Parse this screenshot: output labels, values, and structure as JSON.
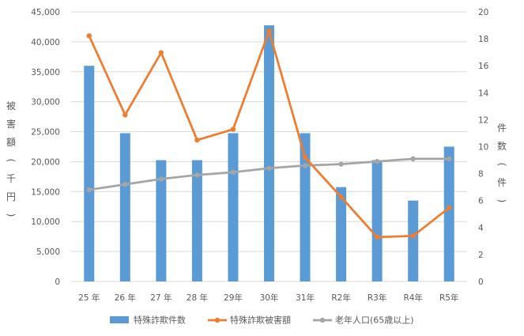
{
  "chart_data": {
    "type": "bar",
    "categories": [
      "25 年",
      "26 年",
      "27 年",
      "28 年",
      "29年",
      "30年",
      "31年",
      "R2年",
      "R3年",
      "R4年",
      "R5年"
    ],
    "left_axis": {
      "label": "被害額（千円）",
      "ylim": [
        0,
        45000
      ],
      "ticks": [
        "0",
        "5,000",
        "10,000",
        "15,000",
        "20,000",
        "25,000",
        "30,000",
        "35,000",
        "40,000",
        "45,000"
      ]
    },
    "right_axis": {
      "label": "件数（件）",
      "ylim": [
        0,
        20
      ],
      "ticks": [
        "0",
        "2",
        "4",
        "6",
        "8",
        "10",
        "12",
        "14",
        "16",
        "18",
        "20"
      ]
    },
    "series": [
      {
        "name": "特殊詐欺件数",
        "type": "bar",
        "axis": "right",
        "color": "#5b9bd5",
        "values": [
          16,
          11,
          9,
          9,
          11,
          19,
          11,
          7,
          9,
          6,
          10
        ]
      },
      {
        "name": "特殊詐欺被害額",
        "type": "line",
        "axis": "left",
        "color": "#ed7d31",
        "values": [
          41000,
          27800,
          38200,
          23600,
          25400,
          41800,
          20700,
          14100,
          7400,
          7600,
          12300
        ]
      },
      {
        "name": "老年人口(65歳以上)",
        "type": "line",
        "axis": "right",
        "color": "#a5a5a5",
        "values": [
          6.8,
          7.2,
          7.6,
          7.9,
          8.1,
          8.4,
          8.6,
          8.7,
          8.9,
          9.1,
          9.1
        ]
      }
    ],
    "grid": true,
    "legend_position": "bottom"
  }
}
